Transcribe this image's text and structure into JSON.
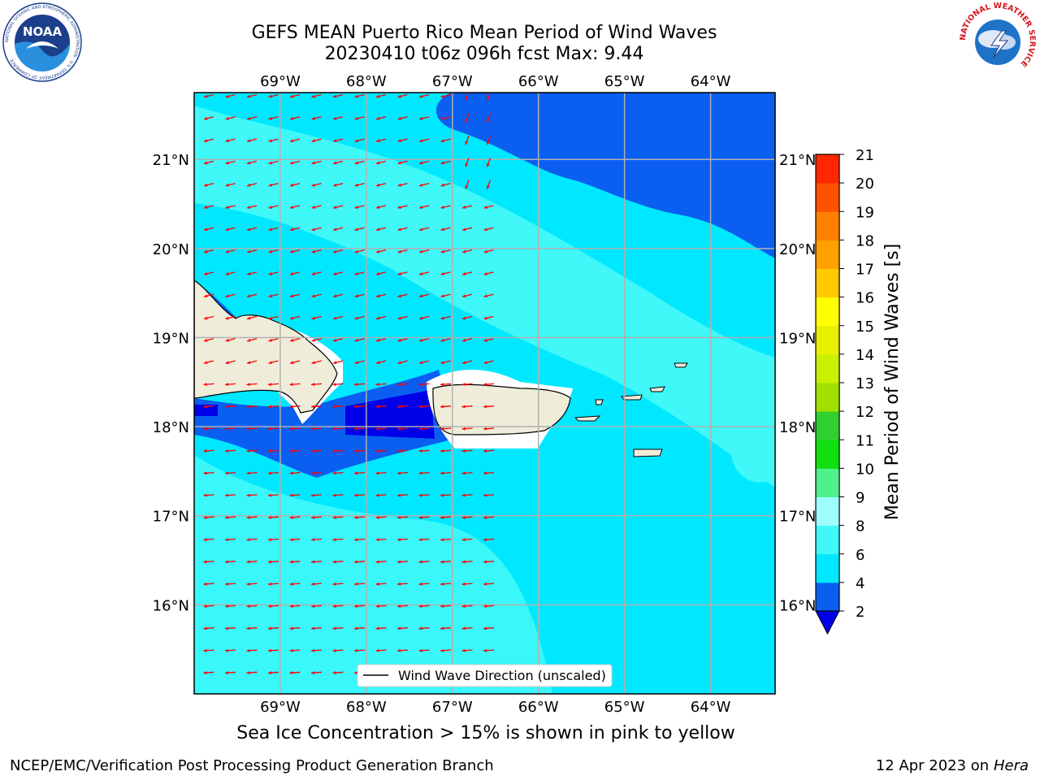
{
  "title": {
    "line1": "GEFS MEAN Puerto Rico Mean Period of Wind Waves",
    "line2": "20230410 t06z 096h fcst   Max: 9.44"
  },
  "logos": {
    "left": {
      "name": "noaa-logo",
      "text": "NOAA",
      "ring": "NATIONAL OCEANIC AND ATMOSPHERIC ADMINISTRATION · U.S. DEPARTMENT OF COMMERCE",
      "color": "#1b3f8b"
    },
    "right": {
      "name": "nws-logo",
      "ring": "NATIONAL WEATHER SERVICE",
      "color": "#d4161c"
    }
  },
  "map": {
    "lon_labels": [
      "69°W",
      "68°W",
      "67°W",
      "66°W",
      "65°W",
      "64°W"
    ],
    "lat_labels": [
      "21°N",
      "20°N",
      "19°N",
      "18°N",
      "17°N",
      "16°N"
    ],
    "lon_values": [
      -69,
      -68,
      -67,
      -66,
      -65,
      -64
    ],
    "lat_values": [
      21,
      20,
      19,
      18,
      17,
      16
    ],
    "extent": {
      "lon_min": -70.0,
      "lon_max": -63.25,
      "lat_min": 15.0,
      "lat_max": 21.75
    },
    "legend": "Wind Wave Direction (unscaled)",
    "arrow_color": "#ff0000",
    "land_color": "#efedda",
    "grid_color": "#b0b0b0"
  },
  "colorbar": {
    "label": "Mean Period of Wind Waves [s]",
    "ticks": [
      "2",
      "4",
      "6",
      "8",
      "9",
      "10",
      "11",
      "12",
      "13",
      "14",
      "15",
      "16",
      "17",
      "18",
      "19",
      "20",
      "21"
    ],
    "colors": [
      "#0a5ff0",
      "#00e8ff",
      "#40f8f8",
      "#9efdfd",
      "#50f08a",
      "#10e010",
      "#30d030",
      "#a0e000",
      "#c8f000",
      "#e8f000",
      "#ffff00",
      "#ffc800",
      "#ffa000",
      "#ff8000",
      "#ff5000",
      "#ff2800",
      "#ff0000"
    ],
    "under_color": "#0000e8"
  },
  "caption": "Sea Ice Concentration > 15% is shown in pink to yellow",
  "footer": {
    "left": "NCEP/EMC/Verification Post Processing Product Generation Branch",
    "right_prefix": "12 Apr 2023 on ",
    "right_machine": "Hera"
  }
}
